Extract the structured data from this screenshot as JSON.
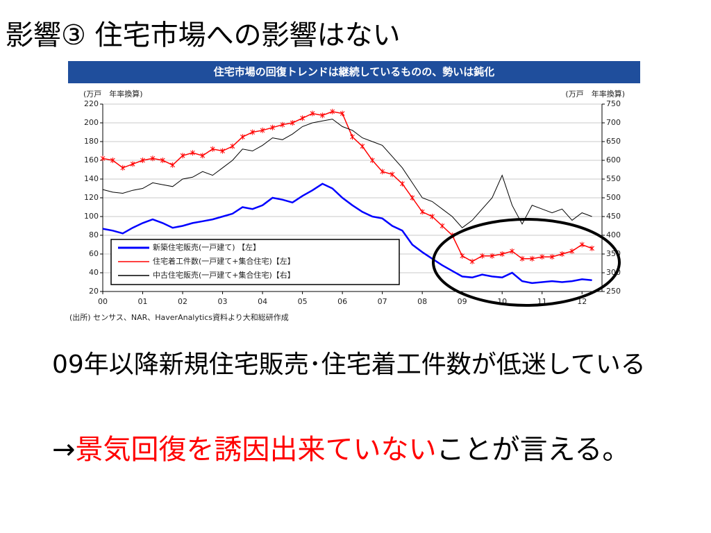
{
  "slide": {
    "title": "影響③ 住宅市場への影響はない",
    "body": [
      "09年以降新規住宅販売･住宅着工件数が低迷している",
      {
        "arrow": "→",
        "emphasis": "景気回復を誘因出来ていない",
        "rest": "ことが言える。"
      }
    ]
  },
  "chart_data": {
    "type": "line",
    "title": "住宅市場の回復トレンドは継続しているものの、勢いは鈍化",
    "y_label": "(万戸　年率換算)",
    "y2_label": "(万戸　年率換算)",
    "source": "(出所) センサス、NAR、HaverAnalytics資料より大和総研作成",
    "x": [
      0,
      0.25,
      0.5,
      0.75,
      1,
      1.25,
      1.5,
      1.75,
      2,
      2.25,
      2.5,
      2.75,
      3,
      3.25,
      3.5,
      3.75,
      4,
      4.25,
      4.5,
      4.75,
      5,
      5.25,
      5.5,
      5.75,
      6,
      6.25,
      6.5,
      6.75,
      7,
      7.25,
      7.5,
      7.75,
      8,
      8.25,
      8.5,
      8.75,
      9,
      9.25,
      9.5,
      9.75,
      10,
      10.25,
      10.5,
      10.75,
      11,
      11.25,
      11.5,
      11.75,
      12,
      12.25
    ],
    "xlim": [
      0,
      12.5
    ],
    "xticks": [
      {
        "value": 0,
        "label": "00"
      },
      {
        "value": 1,
        "label": "01"
      },
      {
        "value": 2,
        "label": "02"
      },
      {
        "value": 3,
        "label": "03"
      },
      {
        "value": 4,
        "label": "04"
      },
      {
        "value": 5,
        "label": "05"
      },
      {
        "value": 6,
        "label": "06"
      },
      {
        "value": 7,
        "label": "07"
      },
      {
        "value": 8,
        "label": "08"
      },
      {
        "value": 9,
        "label": "09"
      },
      {
        "value": 10,
        "label": "10"
      },
      {
        "value": 11,
        "label": "11"
      },
      {
        "value": 12,
        "label": "12"
      }
    ],
    "ylim": [
      20,
      220
    ],
    "yticks": [
      20,
      40,
      60,
      80,
      100,
      120,
      140,
      160,
      180,
      200,
      220
    ],
    "y2lim": [
      250,
      750
    ],
    "y2ticks": [
      250,
      300,
      350,
      400,
      450,
      500,
      550,
      600,
      650,
      700,
      750
    ],
    "grid": true,
    "series": [
      {
        "name": "新築住宅販売(一戸建て) 【左】",
        "color": "#0000ff",
        "values": [
          87,
          85,
          82,
          88,
          93,
          97,
          93,
          88,
          90,
          93,
          95,
          97,
          100,
          103,
          110,
          108,
          112,
          120,
          118,
          115,
          122,
          128,
          135,
          130,
          120,
          112,
          105,
          100,
          98,
          90,
          85,
          70,
          62,
          55,
          48,
          42,
          36,
          35,
          38,
          36,
          35,
          40,
          31,
          29,
          30,
          31,
          30,
          31,
          33,
          32
        ]
      },
      {
        "name": "住宅着工件数(一戸建て+集合住宅)【左】",
        "color": "#ff0000",
        "values": [
          162,
          160,
          152,
          156,
          160,
          162,
          160,
          155,
          165,
          168,
          165,
          172,
          170,
          175,
          185,
          190,
          192,
          195,
          198,
          200,
          205,
          210,
          208,
          212,
          210,
          185,
          175,
          160,
          148,
          145,
          135,
          120,
          105,
          100,
          90,
          80,
          58,
          52,
          58,
          58,
          60,
          63,
          55,
          55,
          57,
          57,
          60,
          63,
          70,
          66
        ]
      },
      {
        "name": "中古住宅販売(一戸建て+集合住宅)【右】",
        "color": "#000000",
        "axis": "y2",
        "values": [
          522,
          515,
          512,
          520,
          525,
          540,
          535,
          530,
          550,
          555,
          570,
          560,
          580,
          600,
          630,
          625,
          640,
          660,
          655,
          670,
          690,
          700,
          705,
          710,
          690,
          680,
          660,
          650,
          640,
          610,
          580,
          540,
          500,
          490,
          470,
          450,
          420,
          440,
          470,
          500,
          560,
          480,
          430,
          480,
          470,
          460,
          470,
          440,
          460,
          450
        ]
      }
    ]
  }
}
